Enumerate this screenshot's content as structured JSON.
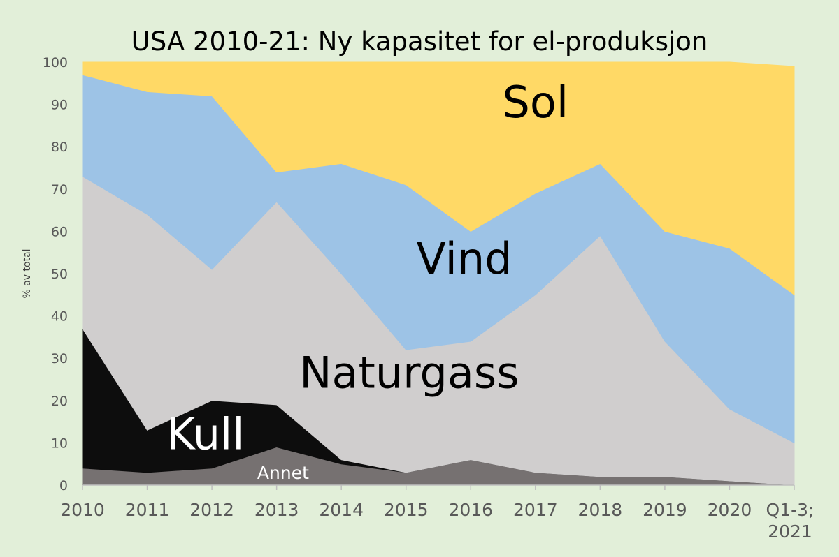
{
  "chart_data": {
    "type": "area",
    "stacked": true,
    "title": "USA 2010-21: Ny kapasitet for el-produksjon",
    "ylabel": "% av total",
    "xlabel": "",
    "ylim": [
      0,
      100
    ],
    "yticks": [
      0,
      10,
      20,
      30,
      40,
      50,
      60,
      70,
      80,
      90,
      100
    ],
    "grid": false,
    "legend": "none",
    "categories": [
      "2010",
      "2011",
      "2012",
      "2013",
      "2014",
      "2015",
      "2016",
      "2017",
      "2018",
      "2019",
      "2020",
      "Q1-3; 2021"
    ],
    "series": [
      {
        "name": "Annet",
        "color": "#767171",
        "label_color": "#ffffff",
        "values": [
          4,
          3,
          4,
          9,
          5,
          3,
          6,
          3,
          2,
          2,
          1,
          0
        ]
      },
      {
        "name": "Kull",
        "color": "#0d0d0d",
        "label_color": "#ffffff",
        "values": [
          33,
          10,
          16,
          10,
          1,
          0,
          0,
          0,
          0,
          0,
          0,
          0
        ]
      },
      {
        "name": "Naturgass",
        "color": "#d0cece",
        "label_color": "#000000",
        "values": [
          36,
          51,
          31,
          48,
          44,
          29,
          28,
          42,
          57,
          32,
          17,
          10
        ]
      },
      {
        "name": "Vind",
        "color": "#9dc3e6",
        "label_color": "#000000",
        "values": [
          24,
          29,
          41,
          7,
          26,
          39,
          26,
          24,
          17,
          26,
          38,
          35
        ]
      },
      {
        "name": "Sol",
        "color": "#ffd966",
        "label_color": "#000000",
        "values": [
          3,
          7,
          8,
          26,
          24,
          29,
          40,
          31,
          24,
          40,
          44,
          54
        ]
      }
    ]
  }
}
